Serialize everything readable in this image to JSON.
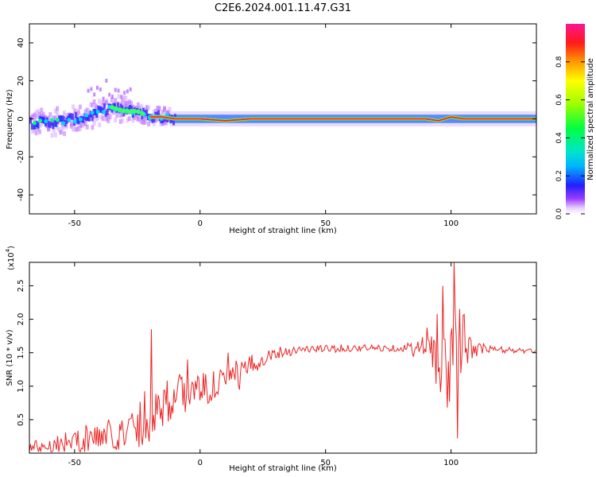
{
  "title": "C2E6.2024.001.11.47.G31",
  "colorbar": {
    "label": "Normalized spectral amplitude",
    "ticks": [
      "0.0",
      "0.2",
      "0.4",
      "0.6",
      "0.8"
    ],
    "tick_values": [
      0.0,
      0.2,
      0.4,
      0.6,
      0.8
    ],
    "range": [
      0,
      1
    ]
  },
  "chart_data": [
    {
      "type": "heatmap",
      "xlabel": "Height of straight line (km)",
      "ylabel": "Frequency (Hz)",
      "xlim": [
        -68,
        134
      ],
      "ylim": [
        -50,
        50
      ],
      "x_ticks": [
        -50,
        0,
        50,
        100
      ],
      "x_tick_labels": [
        "-50",
        "0",
        "50",
        "100"
      ],
      "y_ticks": [
        -40,
        -20,
        0,
        20,
        40
      ],
      "y_tick_labels": [
        "-40",
        "-20",
        "0",
        "20",
        "40"
      ],
      "ridge": [
        {
          "x": -66,
          "freq": -2
        },
        {
          "x": -60,
          "freq": -2
        },
        {
          "x": -55,
          "freq": -1
        },
        {
          "x": -50,
          "freq": 0
        },
        {
          "x": -45,
          "freq": 1
        },
        {
          "x": -40,
          "freq": 4
        },
        {
          "x": -35,
          "freq": 6
        },
        {
          "x": -30,
          "freq": 4
        },
        {
          "x": -25,
          "freq": 4
        },
        {
          "x": -20,
          "freq": 1
        },
        {
          "x": -15,
          "freq": 1
        },
        {
          "x": -10,
          "freq": 0
        },
        {
          "x": 0,
          "freq": 0
        },
        {
          "x": 10,
          "freq": -1
        },
        {
          "x": 20,
          "freq": 0
        },
        {
          "x": 90,
          "freq": 0
        },
        {
          "x": 95,
          "freq": -1
        },
        {
          "x": 100,
          "freq": 1
        },
        {
          "x": 105,
          "freq": 0
        },
        {
          "x": 134,
          "freq": 0
        }
      ]
    },
    {
      "type": "line",
      "xlabel": "Height of straight line (km)",
      "ylabel": "SNR (10 * v/v)",
      "y_multiplier": "(x10",
      "y_multiplier_exp": "4",
      "y_multiplier_close": ")",
      "xlim": [
        -68,
        134
      ],
      "ylim": [
        0,
        2.85
      ],
      "x_ticks": [
        -50,
        0,
        50,
        100
      ],
      "x_tick_labels": [
        "-50",
        "0",
        "50",
        "100"
      ],
      "y_ticks": [
        0.5,
        1.0,
        1.5,
        2.0,
        2.5
      ],
      "y_tick_labels": [
        "0.5",
        "1.0",
        "1.5",
        "2.0",
        "2.5"
      ],
      "series": [
        {
          "color": "#ee2222",
          "baseline": [
            {
              "x": -68,
              "y": 0.08
            },
            {
              "x": -50,
              "y": 0.18
            },
            {
              "x": -40,
              "y": 0.25
            },
            {
              "x": -30,
              "y": 0.3
            },
            {
              "x": -25,
              "y": 0.45
            },
            {
              "x": -20,
              "y": 0.6
            },
            {
              "x": -15,
              "y": 0.75
            },
            {
              "x": -10,
              "y": 0.85
            },
            {
              "x": -5,
              "y": 0.9
            },
            {
              "x": 0,
              "y": 0.95
            },
            {
              "x": 5,
              "y": 1.0
            },
            {
              "x": 10,
              "y": 1.08
            },
            {
              "x": 15,
              "y": 1.15
            },
            {
              "x": 20,
              "y": 1.28
            },
            {
              "x": 25,
              "y": 1.42
            },
            {
              "x": 30,
              "y": 1.5
            },
            {
              "x": 40,
              "y": 1.55
            },
            {
              "x": 60,
              "y": 1.57
            },
            {
              "x": 80,
              "y": 1.57
            },
            {
              "x": 90,
              "y": 1.55
            },
            {
              "x": 100,
              "y": 1.55
            },
            {
              "x": 110,
              "y": 1.56
            },
            {
              "x": 134,
              "y": 1.52
            }
          ],
          "noise": [
            {
              "x": -68,
              "amp": 0.1
            },
            {
              "x": -50,
              "amp": 0.2
            },
            {
              "x": -30,
              "amp": 0.25
            },
            {
              "x": -22,
              "amp": 0.45
            },
            {
              "x": -12,
              "amp": 0.35
            },
            {
              "x": 0,
              "amp": 0.25
            },
            {
              "x": 15,
              "amp": 0.25
            },
            {
              "x": 25,
              "amp": 0.12
            },
            {
              "x": 40,
              "amp": 0.06
            },
            {
              "x": 80,
              "amp": 0.05
            },
            {
              "x": 87,
              "amp": 0.15
            },
            {
              "x": 93,
              "amp": 0.5
            },
            {
              "x": 100,
              "amp": 0.9
            },
            {
              "x": 104,
              "amp": 0.7
            },
            {
              "x": 108,
              "amp": 0.15
            },
            {
              "x": 115,
              "amp": 0.06
            },
            {
              "x": 134,
              "amp": 0.03
            }
          ],
          "peaks": [
            {
              "x": -19.5,
              "y": 1.85
            },
            {
              "x": -5,
              "y": 1.4
            },
            {
              "x": 11,
              "y": 1.5
            },
            {
              "x": 96.5,
              "y": 2.5
            },
            {
              "x": 101,
              "y": 2.85
            },
            {
              "x": 102.5,
              "y": 0.22
            },
            {
              "x": 98.5,
              "y": 0.68
            }
          ]
        }
      ]
    }
  ]
}
